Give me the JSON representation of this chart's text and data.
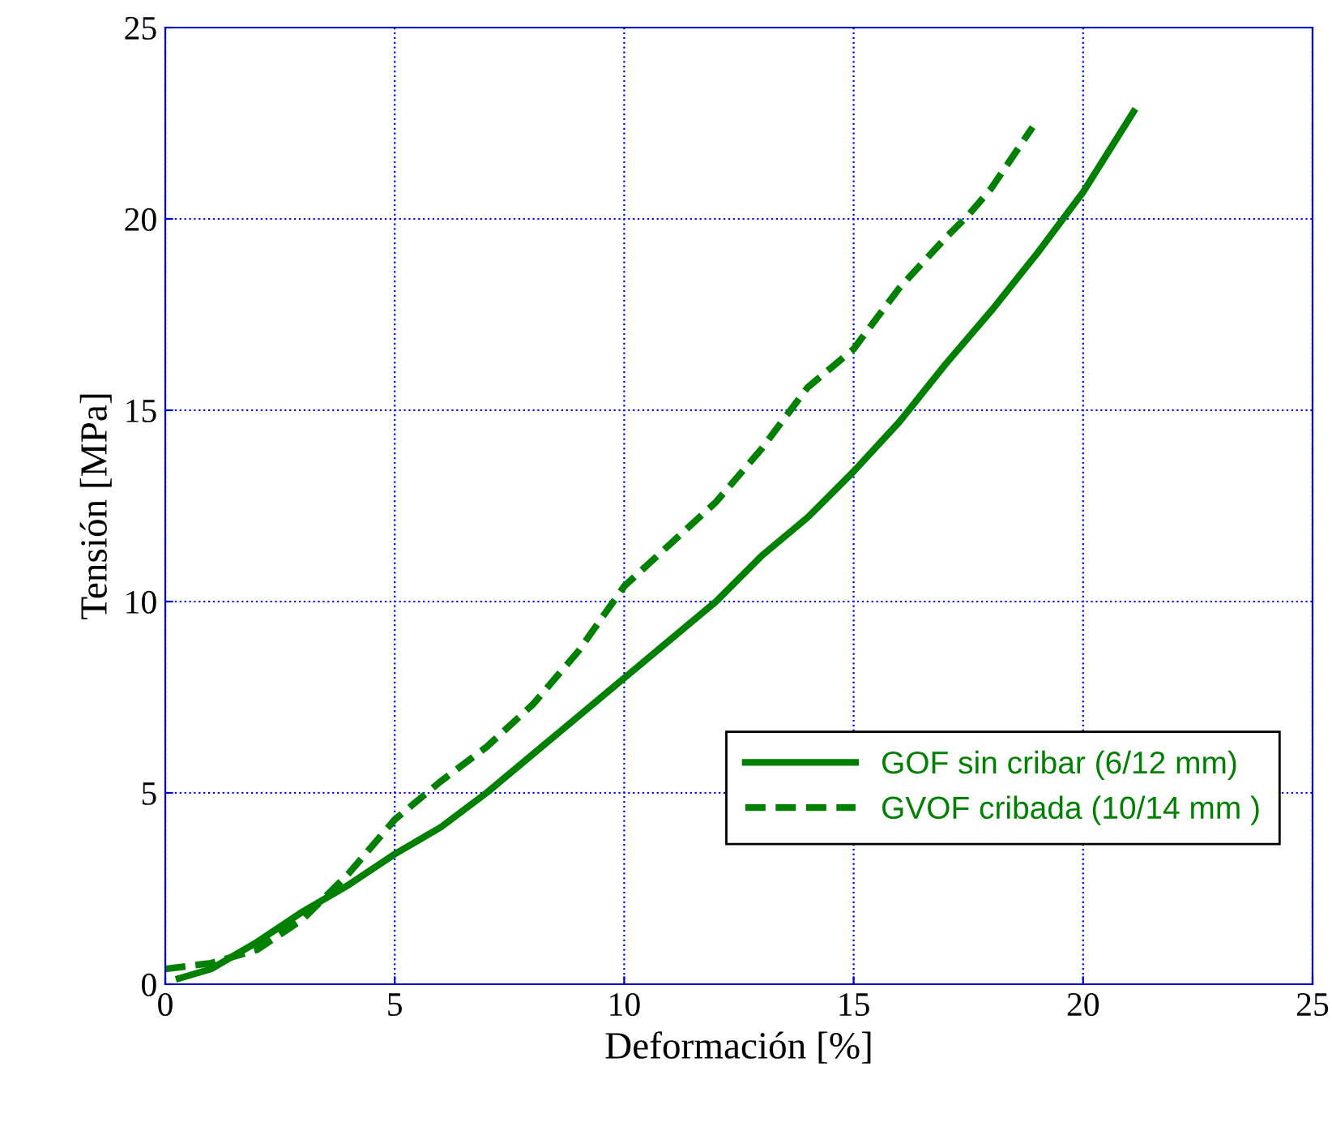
{
  "chart_data": {
    "type": "line",
    "xlabel": "Deformación [%]",
    "ylabel": "Tensión [MPa]",
    "xlim": [
      0,
      25
    ],
    "ylim": [
      0,
      25
    ],
    "xticks": [
      0,
      5,
      10,
      15,
      20,
      25
    ],
    "yticks": [
      0,
      5,
      10,
      15,
      20,
      25
    ],
    "grid": true,
    "legend": "bottom right",
    "series": [
      {
        "name": "GOF sin cribar (6/12 mm)",
        "color": "#008000",
        "line_style": "solid",
        "x": [
          0.3,
          1,
          2,
          3,
          4,
          5,
          6,
          7,
          8,
          9,
          10,
          11,
          12,
          13,
          14,
          15,
          16,
          17,
          18,
          19,
          20,
          21.1
        ],
        "values": [
          0.15,
          0.4,
          1.1,
          1.9,
          2.6,
          3.4,
          4.1,
          5.0,
          6.0,
          7.0,
          8.0,
          9.0,
          10.0,
          11.2,
          12.2,
          13.4,
          14.7,
          16.2,
          17.6,
          19.1,
          20.7,
          22.8
        ]
      },
      {
        "name": "GVOF cribada (10/14 mm )",
        "color": "#008000",
        "line_style": "dashed",
        "x": [
          0,
          1,
          2,
          3,
          4,
          5,
          6,
          7,
          8,
          9,
          10,
          11,
          12,
          13,
          14,
          15,
          16,
          17,
          17.5,
          18,
          18.9
        ],
        "values": [
          0.4,
          0.55,
          0.9,
          1.7,
          2.9,
          4.3,
          5.3,
          6.2,
          7.3,
          8.7,
          10.4,
          11.5,
          12.6,
          14.0,
          15.6,
          16.6,
          18.2,
          19.5,
          20.1,
          20.8,
          22.4
        ]
      }
    ]
  }
}
